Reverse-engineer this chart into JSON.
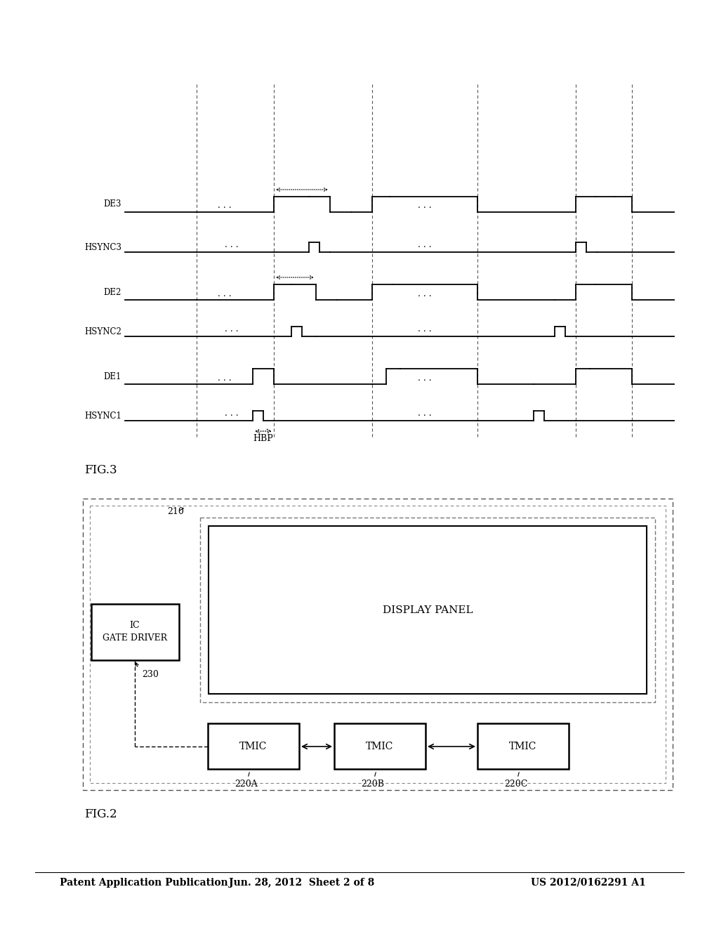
{
  "bg_color": "#ffffff",
  "header_left": "Patent Application Publication",
  "header_center": "Jun. 28, 2012  Sheet 2 of 8",
  "header_right": "US 2012/0162291 A1",
  "fig2_label": "FIG.2",
  "fig3_label": "FIG.3",
  "display_panel_label": "DISPLAY PANEL",
  "ref_210": "210",
  "tmic_labels": [
    "TMIC",
    "TMIC",
    "TMIC"
  ],
  "tmic_refs": [
    "220A",
    "220B",
    "220C"
  ],
  "gate_driver_label": "GATE DRIVER\nIC",
  "gate_driver_ref": "230",
  "hbp_label": "HBP",
  "signal_labels": [
    "HSYNC1",
    "DE1",
    "HSYNC2",
    "DE2",
    "HSYNC3",
    "DE3"
  ],
  "dots_label": "· · ·"
}
